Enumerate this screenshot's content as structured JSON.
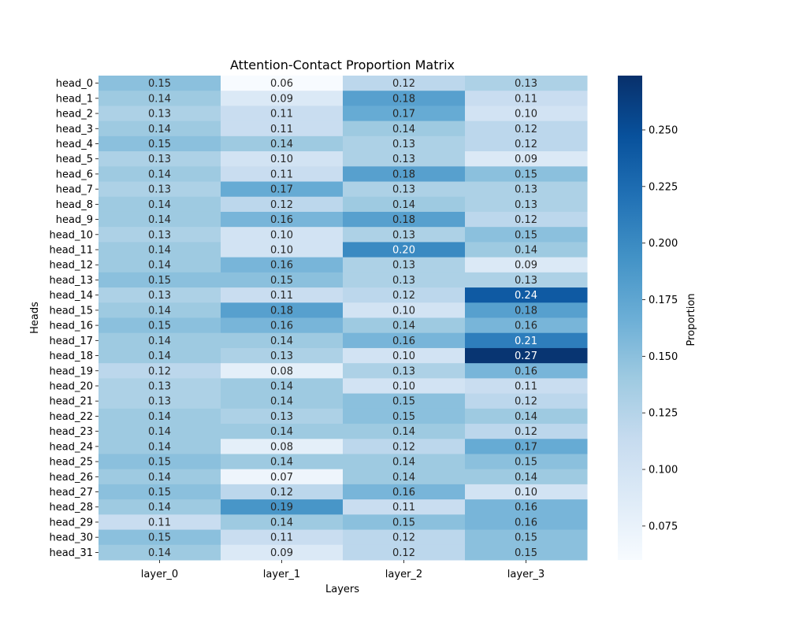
{
  "chart_data": {
    "type": "heatmap",
    "title": "Attention-Contact Proportion Matrix",
    "xlabel": "Layers",
    "ylabel": "Heads",
    "x_categories": [
      "layer_0",
      "layer_1",
      "layer_2",
      "layer_3"
    ],
    "y_categories": [
      "head_0",
      "head_1",
      "head_2",
      "head_3",
      "head_4",
      "head_5",
      "head_6",
      "head_7",
      "head_8",
      "head_9",
      "head_10",
      "head_11",
      "head_12",
      "head_13",
      "head_14",
      "head_15",
      "head_16",
      "head_17",
      "head_18",
      "head_19",
      "head_20",
      "head_21",
      "head_22",
      "head_23",
      "head_24",
      "head_25",
      "head_26",
      "head_27",
      "head_28",
      "head_29",
      "head_30",
      "head_31"
    ],
    "values": [
      [
        0.15,
        0.06,
        0.12,
        0.13
      ],
      [
        0.14,
        0.09,
        0.18,
        0.11
      ],
      [
        0.13,
        0.11,
        0.17,
        0.1
      ],
      [
        0.14,
        0.11,
        0.14,
        0.12
      ],
      [
        0.15,
        0.14,
        0.13,
        0.12
      ],
      [
        0.13,
        0.1,
        0.13,
        0.09
      ],
      [
        0.14,
        0.11,
        0.18,
        0.15
      ],
      [
        0.13,
        0.17,
        0.13,
        0.13
      ],
      [
        0.14,
        0.12,
        0.14,
        0.13
      ],
      [
        0.14,
        0.16,
        0.18,
        0.12
      ],
      [
        0.13,
        0.1,
        0.13,
        0.15
      ],
      [
        0.14,
        0.1,
        0.2,
        0.14
      ],
      [
        0.14,
        0.16,
        0.13,
        0.09
      ],
      [
        0.15,
        0.15,
        0.13,
        0.13
      ],
      [
        0.13,
        0.11,
        0.12,
        0.24
      ],
      [
        0.14,
        0.18,
        0.1,
        0.18
      ],
      [
        0.15,
        0.16,
        0.14,
        0.16
      ],
      [
        0.14,
        0.14,
        0.16,
        0.21
      ],
      [
        0.14,
        0.13,
        0.1,
        0.27
      ],
      [
        0.12,
        0.08,
        0.13,
        0.16
      ],
      [
        0.13,
        0.14,
        0.1,
        0.11
      ],
      [
        0.13,
        0.14,
        0.15,
        0.12
      ],
      [
        0.14,
        0.13,
        0.15,
        0.14
      ],
      [
        0.14,
        0.14,
        0.14,
        0.12
      ],
      [
        0.14,
        0.08,
        0.12,
        0.17
      ],
      [
        0.15,
        0.14,
        0.14,
        0.15
      ],
      [
        0.14,
        0.07,
        0.14,
        0.14
      ],
      [
        0.15,
        0.12,
        0.16,
        0.1
      ],
      [
        0.14,
        0.19,
        0.11,
        0.16
      ],
      [
        0.11,
        0.14,
        0.15,
        0.16
      ],
      [
        0.15,
        0.11,
        0.12,
        0.15
      ],
      [
        0.14,
        0.09,
        0.12,
        0.15
      ]
    ],
    "value_format": "0.00",
    "colormap": "Blues",
    "colormap_stops": [
      "#f7fbff",
      "#deebf7",
      "#c6dbef",
      "#9ecae1",
      "#6baed6",
      "#4292c6",
      "#2171b5",
      "#08519c",
      "#08306b"
    ],
    "vmin": 0.06,
    "vmax": 0.274,
    "colorbar": {
      "label": "Proportion",
      "ticks": [
        0.075,
        0.1,
        0.125,
        0.15,
        0.175,
        0.2,
        0.225,
        0.25
      ],
      "tick_labels": [
        "0.075",
        "0.100",
        "0.125",
        "0.150",
        "0.175",
        "0.200",
        "0.225",
        "0.250"
      ],
      "placement": "right"
    },
    "grid": false
  }
}
